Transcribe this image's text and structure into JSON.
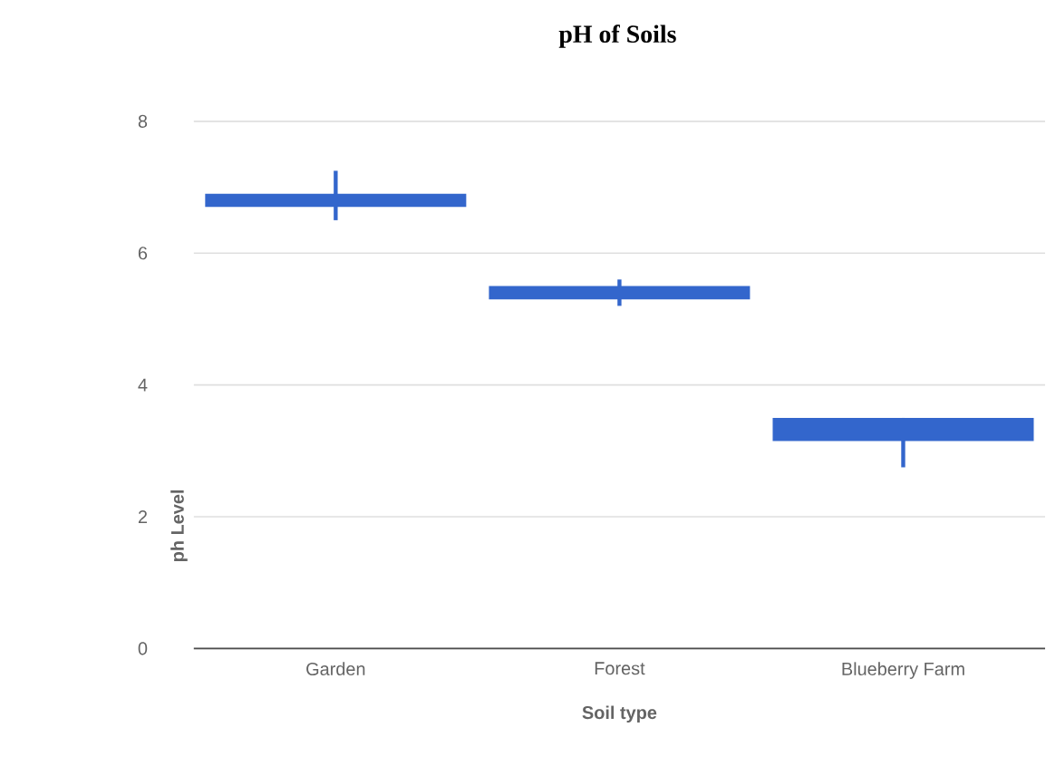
{
  "chart_data": {
    "type": "candlestick",
    "title": "pH of Soils",
    "xlabel": "Soil type",
    "ylabel": "ph Level",
    "categories": [
      "Garden",
      "Forest",
      "Blueberry Farm"
    ],
    "ohlc": [
      [
        6.9,
        7.25,
        6.5,
        6.7
      ],
      [
        5.5,
        5.6,
        5.2,
        5.3
      ],
      [
        3.5,
        3.5,
        2.75,
        3.15
      ]
    ],
    "color": "#3366cc",
    "ylim": [
      0,
      8
    ],
    "yticks": [
      0,
      2,
      4,
      6,
      8
    ],
    "grid": "y"
  }
}
